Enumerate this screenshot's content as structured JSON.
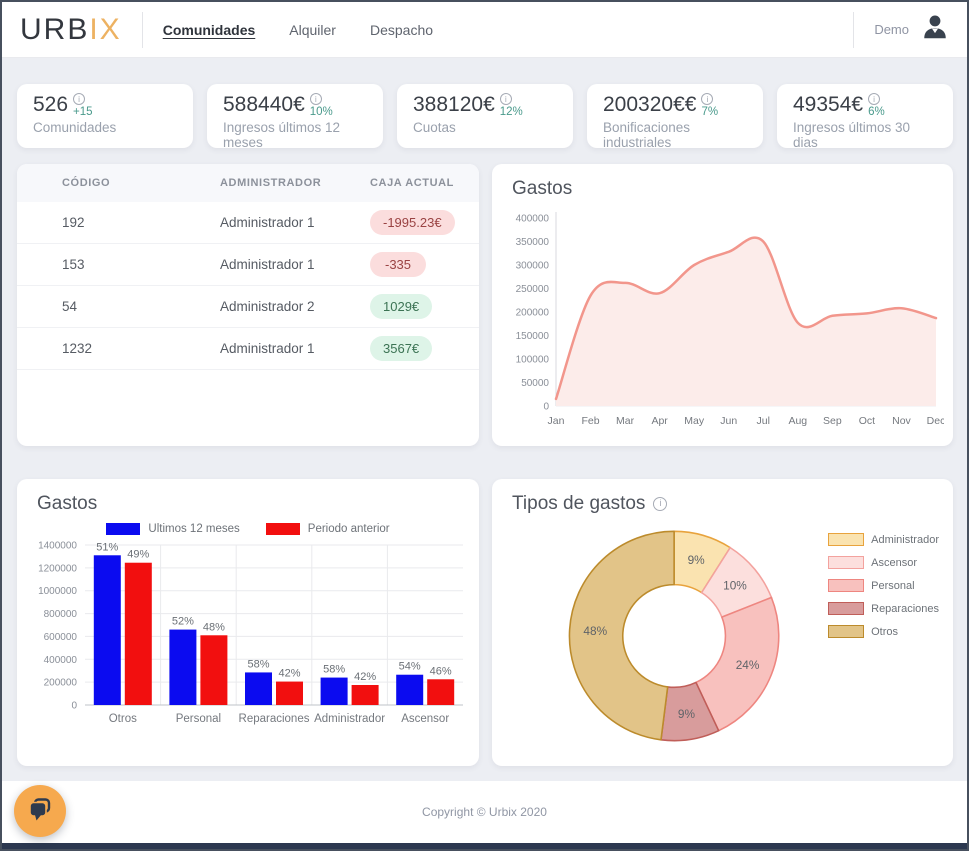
{
  "header": {
    "logo": {
      "part1": "URB",
      "part2": "IX"
    },
    "nav": [
      {
        "label": "Comunidades",
        "active": true
      },
      {
        "label": "Alquiler",
        "active": false
      },
      {
        "label": "Despacho",
        "active": false
      }
    ],
    "user": {
      "name": "Demo"
    }
  },
  "icons": {
    "info_glyph": "i"
  },
  "stats": [
    {
      "value": "526",
      "delta": "+15",
      "label": "Comunidades"
    },
    {
      "value": "588440€",
      "delta": "10%",
      "label": "Ingresos últimos 12 meses"
    },
    {
      "value": "388120€",
      "delta": "12%",
      "label": "Cuotas"
    },
    {
      "value": "200320€€",
      "delta": "7%",
      "label": "Bonificaciones industriales"
    },
    {
      "value": "49354€",
      "delta": "6%",
      "label": "Ingresos últimos 30 dias"
    }
  ],
  "table": {
    "columns": [
      "Código",
      "Administrador",
      "Caja actual"
    ],
    "rows": [
      {
        "codigo": "192",
        "administrador": "Administrador 1",
        "caja": "-1995.23€",
        "status": "negative"
      },
      {
        "codigo": "153",
        "administrador": "Administrador 1",
        "caja": "-335",
        "status": "negative"
      },
      {
        "codigo": "54",
        "administrador": "Administrador 2",
        "caja": "1029€",
        "status": "positive"
      },
      {
        "codigo": "1232",
        "administrador": "Administrador 1",
        "caja": "3567€",
        "status": "positive"
      }
    ]
  },
  "chart_data": [
    {
      "type": "area",
      "title": "Gastos",
      "x": [
        "Jan",
        "Feb",
        "Mar",
        "Apr",
        "May",
        "Jun",
        "Jul",
        "Aug",
        "Sep",
        "Oct",
        "Nov",
        "Dec"
      ],
      "values": [
        15000,
        235000,
        262000,
        240000,
        300000,
        328000,
        350000,
        177000,
        192000,
        197000,
        208000,
        187000
      ],
      "ylim": [
        0,
        400000
      ],
      "ytick_step": 50000,
      "line_color": "#f2968c",
      "fill_color": "#fcecea",
      "grid": false,
      "legend": "none"
    },
    {
      "type": "bar",
      "title": "Gastos",
      "categories": [
        "Otros",
        "Personal",
        "Reparaciones",
        "Administrador",
        "Ascensor"
      ],
      "series": [
        {
          "name": "Ultimos 12 meses",
          "color": "#0b0bf0",
          "values": [
            1310000,
            660000,
            285000,
            240000,
            265000
          ],
          "labels": [
            "51%",
            "52%",
            "58%",
            "58%",
            "54%"
          ]
        },
        {
          "name": "Periodo anterior",
          "color": "#f20f0f",
          "values": [
            1245000,
            610000,
            205000,
            175000,
            225000
          ],
          "labels": [
            "49%",
            "48%",
            "42%",
            "42%",
            "46%"
          ]
        }
      ],
      "ylim": [
        0,
        1400000
      ],
      "ytick_step": 200000,
      "grid": true,
      "legend": "top"
    },
    {
      "type": "donut",
      "title": "Tipos de gastos",
      "slices": [
        {
          "label": "Administrador",
          "value": 9,
          "pct_label": "9%",
          "fill": "#fae3b0",
          "border": "#e8a33d"
        },
        {
          "label": "Ascensor",
          "value": 10,
          "pct_label": "10%",
          "fill": "#fcdfdd",
          "border": "#f3a29e"
        },
        {
          "label": "Personal",
          "value": 24,
          "pct_label": "24%",
          "fill": "#f8c1be",
          "border": "#ee8680"
        },
        {
          "label": "Reparaciones",
          "value": 9,
          "pct_label": "9%",
          "fill": "#d89c9c",
          "border": "#c05e59"
        },
        {
          "label": "Otros",
          "value": 48,
          "pct_label": "48%",
          "fill": "#e2c488",
          "border": "#bc8b2c"
        }
      ],
      "legend_position": "right"
    }
  ],
  "footer": {
    "copyright": "Copyright © Urbix 2020"
  }
}
